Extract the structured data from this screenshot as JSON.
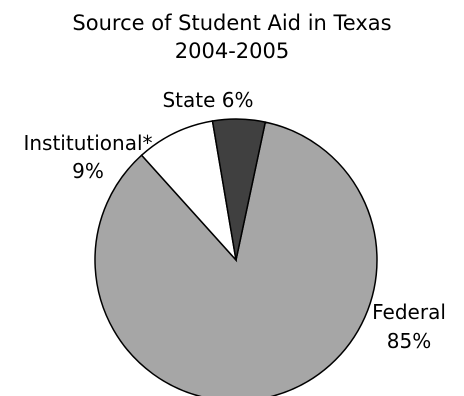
{
  "chart_data": {
    "type": "pie",
    "title": [
      "Source of Student Aid in Texas",
      "2004-2005"
    ],
    "slices": [
      {
        "label": "Federal",
        "value_label": "85%",
        "value": 85,
        "color": "#a6a6a6"
      },
      {
        "label": "Institutional*",
        "value_label": "9%",
        "value": 9,
        "color": "#ffffff"
      },
      {
        "label": "State",
        "value_label": "6%",
        "value": 6,
        "color": "#404040"
      }
    ],
    "stroke_color": "#000000"
  }
}
